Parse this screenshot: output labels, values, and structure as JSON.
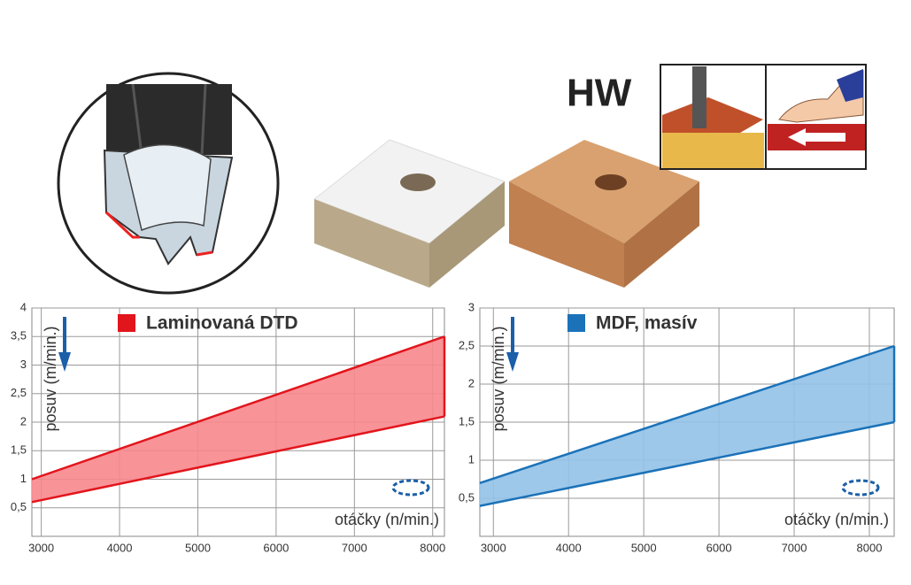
{
  "badge": "HW",
  "chart_data": [
    {
      "type": "range-area",
      "legend": "Laminovaná DTD",
      "y_label": "posuv (m/min.)",
      "x_label": "otáčky (n/min.)",
      "x": [
        2880,
        8150
      ],
      "upper": [
        1.0,
        3.5
      ],
      "lower": [
        0.6,
        2.1
      ],
      "color": "#e2151c",
      "fill": "#f7878d",
      "xlim": [
        2880,
        8150
      ],
      "xticks": [
        3000,
        4000,
        5000,
        6000,
        7000,
        8000
      ],
      "ylim": [
        0,
        4
      ],
      "yticks": [
        {
          "value": 0.5,
          "label": "0,5"
        },
        1,
        {
          "value": 1.5,
          "label": "1,5"
        },
        2,
        {
          "value": 2.5,
          "label": "2,5"
        },
        3,
        {
          "value": 3.5,
          "label": "3,5"
        },
        4
      ],
      "grid": true
    },
    {
      "type": "range-area",
      "legend": "MDF, masív",
      "y_label": "posuv (m/min.)",
      "x_label": "otáčky (n/min.)",
      "x": [
        2820,
        8330
      ],
      "upper": [
        0.7,
        2.5
      ],
      "lower": [
        0.4,
        1.5
      ],
      "color": "#1b72b8",
      "fill": "#92c2e8",
      "xlim": [
        2820,
        8330
      ],
      "xticks": [
        3000,
        4000,
        5000,
        6000,
        7000,
        8000
      ],
      "ylim": [
        0,
        3
      ],
      "yticks": [
        {
          "value": 0.5,
          "label": "0,5"
        },
        1,
        {
          "value": 1.5,
          "label": "1,5"
        },
        2,
        {
          "value": 2.5,
          "label": "2,5"
        },
        3
      ],
      "grid": true
    }
  ]
}
